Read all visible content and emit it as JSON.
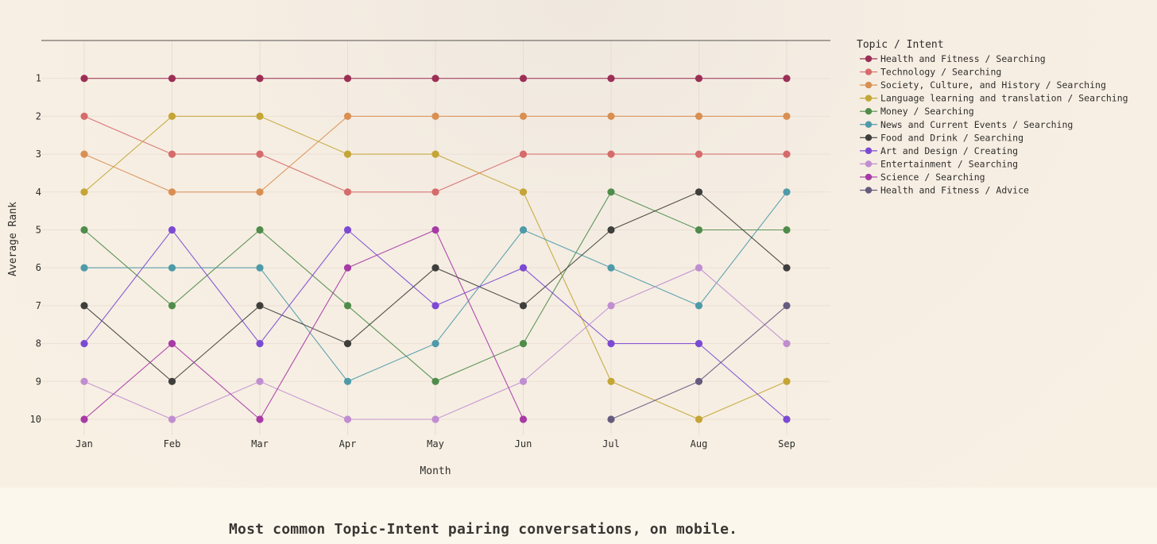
{
  "caption": "Most common Topic-Intent pairing conversations, on mobile.",
  "chart_data": {
    "type": "line",
    "title": "",
    "xlabel": "Month",
    "ylabel": "Average Rank",
    "categories": [
      "Jan",
      "Feb",
      "Mar",
      "Apr",
      "May",
      "Jun",
      "Jul",
      "Aug",
      "Sep"
    ],
    "y_ticks": [
      "1",
      "2",
      "3",
      "4",
      "5",
      "6",
      "7",
      "8",
      "9",
      "10"
    ],
    "ylim": [
      10.5,
      0
    ],
    "y_reversed": true,
    "grid": true,
    "legend_title": "Topic / Intent",
    "legend_position": "top-right",
    "series": [
      {
        "name": "Health and Fitness / Searching",
        "color": "#9c2f55",
        "values": [
          1,
          1,
          1,
          1,
          1,
          1,
          1,
          1,
          1
        ]
      },
      {
        "name": "Technology / Searching",
        "color": "#d66b6b",
        "values": [
          2,
          3,
          3,
          4,
          4,
          3,
          3,
          3,
          3
        ]
      },
      {
        "name": "Society, Culture, and History / Searching",
        "color": "#d98f52",
        "values": [
          3,
          4,
          4,
          2,
          2,
          2,
          2,
          2,
          2
        ]
      },
      {
        "name": "Language learning and translation / Searching",
        "color": "#c4a535",
        "values": [
          4,
          2,
          2,
          3,
          3,
          4,
          9,
          10,
          9
        ]
      },
      {
        "name": "Money / Searching",
        "color": "#4f8c4a",
        "values": [
          5,
          7,
          5,
          7,
          9,
          8,
          4,
          5,
          5
        ]
      },
      {
        "name": "News and Current Events / Searching",
        "color": "#4e9aa8",
        "values": [
          6,
          6,
          6,
          9,
          8,
          5,
          6,
          7,
          4
        ]
      },
      {
        "name": "Food and Drink / Searching",
        "color": "#3e3f3c",
        "values": [
          7,
          9,
          7,
          8,
          6,
          7,
          5,
          4,
          6
        ]
      },
      {
        "name": "Art and Design / Creating",
        "color": "#7c4ad2",
        "values": [
          8,
          5,
          8,
          5,
          7,
          6,
          8,
          8,
          10
        ]
      },
      {
        "name": "Entertainment / Searching",
        "color": "#c08ed0",
        "values": [
          9,
          10,
          9,
          10,
          10,
          9,
          7,
          6,
          8
        ]
      },
      {
        "name": "Science / Searching",
        "color": "#a73aa5",
        "values": [
          10,
          8,
          10,
          6,
          5,
          10,
          null,
          null,
          null
        ]
      },
      {
        "name": "Health and Fitness / Advice",
        "color": "#655b7e",
        "values": [
          null,
          null,
          null,
          null,
          null,
          null,
          10,
          9,
          7
        ]
      }
    ]
  }
}
